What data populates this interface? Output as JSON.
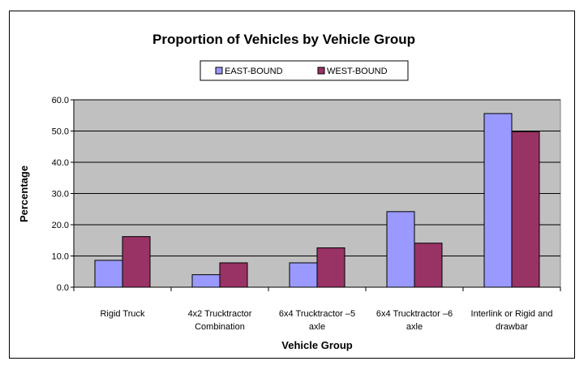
{
  "chart_data": {
    "type": "bar",
    "title": "Proportion of Vehicles by Vehicle Group",
    "xlabel": "Vehicle Group",
    "ylabel": "Percentage",
    "ylim": [
      0,
      60
    ],
    "yticks": [
      "0.0",
      "10.0",
      "20.0",
      "30.0",
      "40.0",
      "50.0",
      "60.0"
    ],
    "categories": [
      [
        "Rigid Truck"
      ],
      [
        "4x2 Trucktractor",
        "Combination"
      ],
      [
        "6x4 Trucktractor –5",
        "axle"
      ],
      [
        "6x4 Trucktractor –6",
        "axle"
      ],
      [
        "Interlink or Rigid and",
        "drawbar"
      ]
    ],
    "series": [
      {
        "name": "EAST-BOUND",
        "color": "#9999ff",
        "values": [
          8.6,
          4.0,
          7.8,
          24.2,
          55.6
        ]
      },
      {
        "name": "WEST-BOUND",
        "color": "#993366",
        "values": [
          16.2,
          7.8,
          12.6,
          14.1,
          49.8
        ]
      }
    ],
    "grid": true,
    "legend": "top",
    "plot_background": "#c0c0c0"
  }
}
